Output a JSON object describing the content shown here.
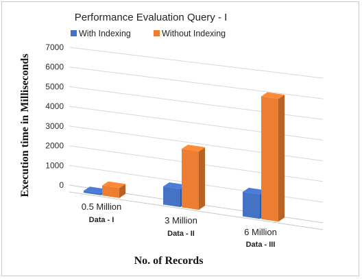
{
  "chart_data": {
    "type": "bar",
    "title": "Performance Evaluation Query - I",
    "xlabel": "No. of Records",
    "ylabel": "Execution time in Milliseconds",
    "categories": [
      {
        "main": "0.5 Million",
        "sub": "Data - I"
      },
      {
        "main": "3 Million",
        "sub": "Data - II"
      },
      {
        "main": "6 Million",
        "sub": "Data - III"
      }
    ],
    "series": [
      {
        "name": "With Indexing",
        "color": "#4472C4",
        "values": [
          100,
          900,
          1200
        ]
      },
      {
        "name": "Without Indexing",
        "color": "#ED7D31",
        "values": [
          500,
          2900,
          6000
        ]
      }
    ],
    "yticks": [
      "0",
      "1000",
      "2000",
      "3000",
      "4000",
      "5000",
      "6000",
      "7000"
    ],
    "ylim": [
      0,
      7000
    ],
    "grid": true,
    "legend_position": "top",
    "style": "3d-column"
  }
}
